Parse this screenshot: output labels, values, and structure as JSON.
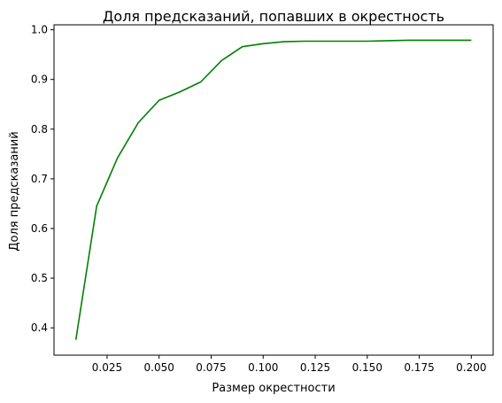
{
  "chart_data": {
    "type": "line",
    "title": "Доля предсказаний, попавших в окрестность",
    "xlabel": "Размер окрестности",
    "ylabel": "Доля предсказаний",
    "xlim": [
      -0.0005,
      0.2105
    ],
    "ylim": [
      0.345,
      1.01
    ],
    "x_ticks": [
      0.025,
      0.05,
      0.075,
      0.1,
      0.125,
      0.15,
      0.175,
      0.2
    ],
    "x_tick_labels": [
      "0.025",
      "0.050",
      "0.075",
      "0.100",
      "0.125",
      "0.150",
      "0.175",
      "0.200"
    ],
    "y_ticks": [
      0.4,
      0.5,
      0.6,
      0.7,
      0.8,
      0.9,
      1.0
    ],
    "y_tick_labels": [
      "0.4",
      "0.5",
      "0.6",
      "0.7",
      "0.8",
      "0.9",
      "1.0"
    ],
    "grid": false,
    "series": [
      {
        "color": "#008000",
        "x": [
          0.01,
          0.02,
          0.03,
          0.04,
          0.05,
          0.06,
          0.07,
          0.08,
          0.09,
          0.1,
          0.11,
          0.12,
          0.13,
          0.14,
          0.15,
          0.16,
          0.17,
          0.18,
          0.19,
          0.2
        ],
        "y": [
          0.376,
          0.645,
          0.742,
          0.813,
          0.858,
          0.875,
          0.895,
          0.938,
          0.966,
          0.972,
          0.976,
          0.977,
          0.977,
          0.977,
          0.977,
          0.978,
          0.979,
          0.979,
          0.979,
          0.979
        ]
      }
    ]
  }
}
